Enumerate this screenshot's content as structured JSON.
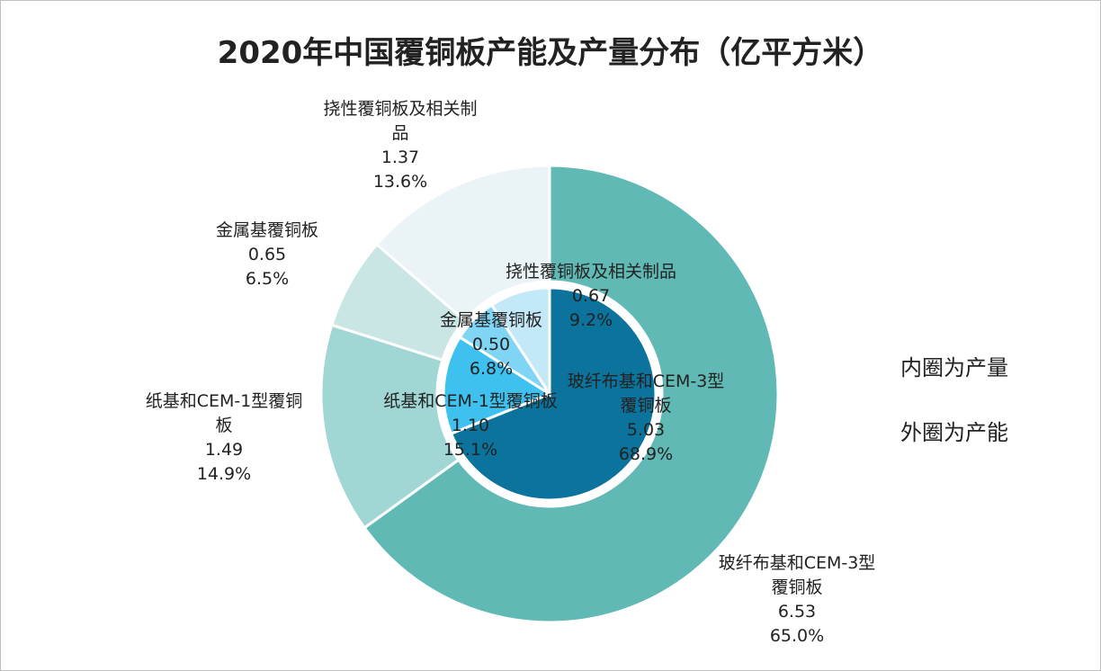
{
  "chart_data": {
    "type": "pie",
    "title": "2020年中国覆铜板产能及产量分布（亿平方米）",
    "annotations": [
      "内圈为产量",
      "外圈为产能"
    ],
    "categories": [
      "玻纤布基和CEM-3型覆铜板",
      "纸基和CEM-1型覆铜板",
      "金属基覆铜板",
      "挠性覆铜板及相关制品"
    ],
    "series": [
      {
        "name": "产量",
        "ring": "inner",
        "values": [
          5.03,
          1.1,
          0.5,
          0.67
        ],
        "percents": [
          "68.9%",
          "15.1%",
          "6.8%",
          "9.2%"
        ],
        "value_labels": [
          "5.03",
          "1.10",
          "0.50",
          "0.67"
        ],
        "colors": [
          "#0b739c",
          "#3ec1ef",
          "#80d5f4",
          "#c3e8f8"
        ]
      },
      {
        "name": "产能",
        "ring": "outer",
        "values": [
          6.53,
          1.49,
          0.65,
          1.37
        ],
        "percents": [
          "65.0%",
          "14.9%",
          "6.5%",
          "13.6%"
        ],
        "value_labels": [
          "6.53",
          "1.49",
          "0.65",
          "1.37"
        ],
        "colors": [
          "#60b9b4",
          "#a0d6d3",
          "#c9e6e5",
          "#eaf3f5"
        ]
      }
    ],
    "outer_labels": [
      [
        "玻纤布基和CEM-3型",
        "覆铜板"
      ],
      [
        "纸基和CEM-1型覆铜",
        "板"
      ],
      [
        "金属基覆铜板"
      ],
      [
        "挠性覆铜板及相关制",
        "品"
      ]
    ],
    "inner_labels": [
      [
        "玻纤布基和CEM-3型",
        "覆铜板"
      ],
      [
        "纸基和CEM-1型覆铜板"
      ],
      [
        "金属基覆铜板"
      ],
      [
        "挠性覆铜板及相关制品"
      ]
    ],
    "legend": "none"
  }
}
